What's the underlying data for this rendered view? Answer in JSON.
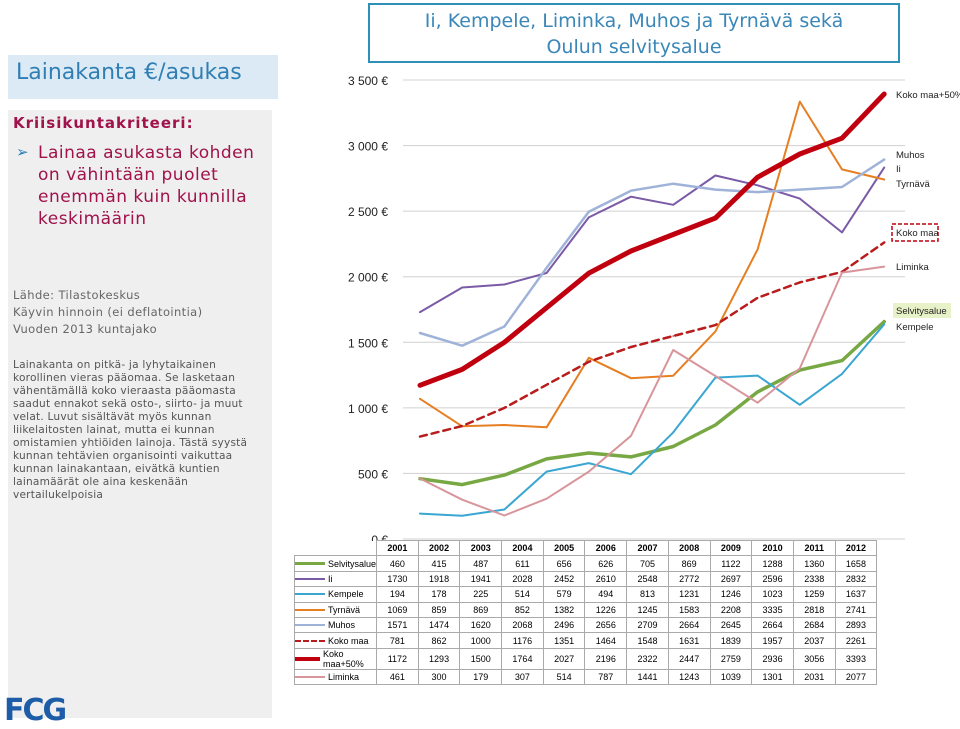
{
  "header": {
    "title_line1": "Ii, Kempele, Liminka, Muhos ja Tyrnävä sekä",
    "title_line2": "Oulun selvitysalue"
  },
  "left": {
    "title": "Lainakanta €/asukas",
    "criteria_heading": "Kriisikuntakriteeri:",
    "criteria_text": "Lainaa asukasta kohden on vähintään puolet enemmän kuin kunnilla keskimäärin",
    "source_lines": [
      "Lähde: Tilastokeskus",
      "Käyvin hinnoin (ei deflatointia)",
      "Vuoden 2013 kuntajako"
    ],
    "note": "Lainakanta on pitkä- ja lyhytaikainen korollinen vieras pääomaa. Se lasketaan vähentämällä koko vieraasta pääomasta saadut ennakot sekä osto-, siirto- ja muut velat. Luvut sisältävät myös kunnan liikelaitosten lainat, mutta ei kunnan omistamien yhtiöiden lainoja. Tästä syystä kunnan tehtävien organisointi vaikuttaa kunnan lainakantaan, eivätkä kuntien lainamäärät ole aina keskenään vertailukelpoisia",
    "logo_text": "FCG"
  },
  "chart_data": {
    "type": "line",
    "title": "",
    "xlabel": "",
    "ylabel": "",
    "x": [
      2001,
      2002,
      2003,
      2004,
      2005,
      2006,
      2007,
      2008,
      2009,
      2010,
      2011,
      2012
    ],
    "ylim": [
      0,
      3500
    ],
    "yticks": [
      "0 €",
      "500 €",
      "1 000 €",
      "1 500 €",
      "2 000 €",
      "2 500 €",
      "3 000 €",
      "3 500 €"
    ],
    "grid": true,
    "legend": "table-below",
    "series": [
      {
        "name": "Selvitysalue",
        "color": "#77a843",
        "dash": false,
        "width": 3.5,
        "values": [
          460,
          415,
          487,
          611,
          656,
          626,
          705,
          869,
          1122,
          1288,
          1360,
          1658
        ]
      },
      {
        "name": "Ii",
        "color": "#7b5aa6",
        "dash": false,
        "width": 2,
        "values": [
          1730,
          1918,
          1941,
          2028,
          2452,
          2610,
          2548,
          2772,
          2697,
          2596,
          2338,
          2832
        ]
      },
      {
        "name": "Kempele",
        "color": "#3aa6d2",
        "dash": false,
        "width": 2,
        "values": [
          194,
          178,
          225,
          514,
          579,
          494,
          813,
          1231,
          1246,
          1023,
          1259,
          1637
        ]
      },
      {
        "name": "Tyrnävä",
        "color": "#e67e22",
        "dash": false,
        "width": 2,
        "values": [
          1069,
          859,
          869,
          852,
          1382,
          1226,
          1245,
          1583,
          2208,
          3335,
          2818,
          2741
        ]
      },
      {
        "name": "Muhos",
        "color": "#9fb3d9",
        "dash": false,
        "width": 2.5,
        "values": [
          1571,
          1474,
          1620,
          2068,
          2496,
          2656,
          2709,
          2664,
          2645,
          2664,
          2684,
          2893
        ]
      },
      {
        "name": "Koko maa",
        "color": "#b81c1c",
        "dash": true,
        "width": 2.5,
        "values": [
          781,
          862,
          1000,
          1176,
          1351,
          1464,
          1548,
          1631,
          1839,
          1957,
          2037,
          2261
        ]
      },
      {
        "name": "Koko maa+50%",
        "color": "#c0000f",
        "dash": false,
        "width": 5,
        "values": [
          1172,
          1293,
          1500,
          1764,
          2027,
          2196,
          2322,
          2447,
          2759,
          2936,
          3056,
          3393
        ]
      },
      {
        "name": "Liminka",
        "color": "#d8959b",
        "dash": false,
        "width": 2,
        "values": [
          461,
          300,
          179,
          307,
          514,
          787,
          1441,
          1243,
          1039,
          1301,
          2031,
          2077
        ]
      }
    ],
    "end_labels": [
      {
        "text": "Koko maa+50%",
        "series": "Koko maa+50%"
      },
      {
        "text": "Muhos",
        "series": "Muhos"
      },
      {
        "text": "Ii",
        "series": "Ii"
      },
      {
        "text": "Tyrnävä",
        "series": "Tyrnävä"
      },
      {
        "text": "Koko maa",
        "series": "Koko maa"
      },
      {
        "text": "Liminka",
        "series": "Liminka"
      },
      {
        "text": "Selvitysalue",
        "series": "Selvitysalue"
      },
      {
        "text": "Kempele",
        "series": "Kempele"
      }
    ]
  }
}
